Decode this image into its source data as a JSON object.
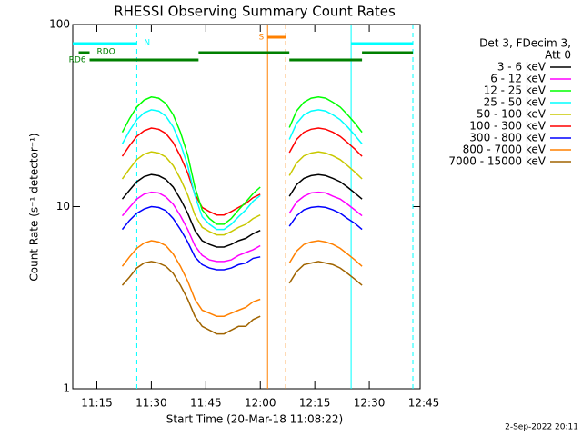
{
  "chart_data": {
    "type": "line",
    "title": "RHESSI Observing Summary Count Rates",
    "x_label": "Start Time (20-Mar-18 11:08:22)",
    "y_label": "Count Rate (s⁻¹ detector⁻¹)",
    "footer": "2-Sep-2022 20:11",
    "log_y": true,
    "xlim": [
      "11:08:22",
      "12:44"
    ],
    "xticks": [
      "11:15",
      "11:30",
      "11:45",
      "12:00",
      "12:15",
      "12:30",
      "12:45"
    ],
    "ylim": [
      1,
      100
    ],
    "yticks": [
      1,
      10,
      100
    ],
    "legend_position": "right",
    "legend_title": [
      "Det 3, FDecim 3,",
      "Att 0"
    ],
    "x": [
      "11:22",
      "11:24",
      "11:26",
      "11:28",
      "11:30",
      "11:32",
      "11:34",
      "11:36",
      "11:38",
      "11:40",
      "11:42",
      "11:44",
      "11:46",
      "11:48",
      "11:50",
      "11:52",
      "11:54",
      "11:56",
      "11:58",
      "12:00",
      "12:04",
      "12:08",
      "12:10",
      "12:12",
      "12:14",
      "12:16",
      "12:18",
      "12:20",
      "12:22",
      "12:24",
      "12:26",
      "12:28"
    ],
    "series": [
      {
        "name": "3 - 6 keV",
        "color": "#000000",
        "values": [
          11.0,
          12.3,
          13.7,
          14.6,
          15,
          14.8,
          14.1,
          12.8,
          11.0,
          9.2,
          7.4,
          6.5,
          6.2,
          6,
          6,
          6.2,
          6.5,
          6.7,
          7.1,
          7.4,
          null,
          11.4,
          13.2,
          14.3,
          14.8,
          15,
          14.8,
          14.3,
          13.7,
          12.8,
          11.9,
          11.0
        ]
      },
      {
        "name": "6 - 12 keV",
        "color": "#ff00ff",
        "values": [
          8.9,
          9.9,
          11.0,
          11.7,
          12,
          11.9,
          11.3,
          10.3,
          8.9,
          7.5,
          6.1,
          5.4,
          5.1,
          5,
          5,
          5.1,
          5.4,
          5.6,
          5.8,
          6.1,
          null,
          9.2,
          10.6,
          11.4,
          11.9,
          12,
          11.9,
          11.4,
          11.0,
          10.3,
          9.6,
          8.9
        ]
      },
      {
        "name": "12 - 25 keV",
        "color": "#00ff00",
        "values": [
          25.6,
          30.4,
          35.2,
          38.4,
          40,
          39.4,
          36.8,
          32,
          25.6,
          19.2,
          12.8,
          9.6,
          8.6,
          8,
          8,
          8.6,
          9.6,
          10.6,
          11.8,
          12.8,
          null,
          27.2,
          33.6,
          37.4,
          39.4,
          40,
          39.4,
          37.4,
          35.2,
          32,
          28.8,
          25.6
        ]
      },
      {
        "name": "25 - 50 keV",
        "color": "#00ffff",
        "values": [
          22.1,
          26.1,
          30.0,
          32.7,
          34,
          33.5,
          31.4,
          27.4,
          22.1,
          16.8,
          11.5,
          8.8,
          8.0,
          7.5,
          7.5,
          8.0,
          8.8,
          9.6,
          10.7,
          11.5,
          null,
          23.4,
          28.7,
          31.9,
          33.5,
          34,
          33.5,
          31.9,
          30.0,
          27.4,
          24.7,
          22.1
        ]
      },
      {
        "name": "50 - 100 keV",
        "color": "#c8c800",
        "values": [
          14.2,
          16.1,
          18.1,
          19.4,
          20,
          19.7,
          18.7,
          16.8,
          14.2,
          11.6,
          9.0,
          7.7,
          7.3,
          7,
          7,
          7.3,
          7.7,
          8.0,
          8.6,
          9.0,
          null,
          14.8,
          17.4,
          19.0,
          19.7,
          20,
          19.7,
          19.0,
          18.1,
          16.8,
          15.5,
          14.2
        ]
      },
      {
        "name": "100 - 300 keV",
        "color": "#ff0000",
        "values": [
          18.9,
          21.6,
          24.3,
          26.1,
          27,
          26.6,
          25.2,
          22.5,
          18.9,
          15.3,
          11.7,
          9.9,
          9.4,
          9,
          9,
          9.4,
          9.9,
          10.4,
          11.2,
          11.7,
          null,
          19.8,
          23.4,
          25.6,
          26.6,
          27,
          26.6,
          25.6,
          24.3,
          22.5,
          20.7,
          18.9
        ]
      },
      {
        "name": "300 - 800 keV",
        "color": "#0000ff",
        "values": [
          7.5,
          8.4,
          9.2,
          9.7,
          10,
          9.9,
          9.5,
          8.6,
          7.5,
          6.4,
          5.3,
          4.8,
          4.6,
          4.5,
          4.5,
          4.6,
          4.8,
          4.9,
          5.2,
          5.3,
          null,
          7.8,
          8.9,
          9.6,
          9.9,
          10,
          9.9,
          9.6,
          9.2,
          8.6,
          8.1,
          7.5
        ]
      },
      {
        "name": "800 - 7000 keV",
        "color": "#ff8000",
        "values": [
          4.7,
          5.3,
          5.9,
          6.3,
          6.5,
          6.4,
          6.1,
          5.5,
          4.7,
          3.9,
          3.1,
          2.7,
          2.6,
          2.5,
          2.5,
          2.6,
          2.7,
          2.8,
          3.0,
          3.1,
          null,
          4.9,
          5.7,
          6.2,
          6.4,
          6.5,
          6.4,
          6.2,
          5.9,
          5.5,
          5.1,
          4.7
        ]
      },
      {
        "name": "7000 - 15000 keV",
        "color": "#a06400",
        "values": [
          3.7,
          4.1,
          4.6,
          4.9,
          5,
          4.9,
          4.7,
          4.3,
          3.7,
          3.1,
          2.5,
          2.2,
          2.1,
          2,
          2,
          2.1,
          2.2,
          2.2,
          2.4,
          2.5,
          null,
          3.8,
          4.4,
          4.8,
          4.9,
          5,
          4.9,
          4.8,
          4.6,
          4.3,
          4.0,
          3.7
        ]
      }
    ],
    "flags": [
      {
        "label": "N",
        "color": "#00ffff",
        "intervals": [
          [
            "11:08:22",
            "11:26"
          ],
          [
            "12:25",
            "12:42"
          ]
        ]
      },
      {
        "label": "S",
        "color": "#ff8000",
        "intervals": [
          [
            "12:02",
            "12:07"
          ]
        ]
      },
      {
        "label": "RDO",
        "color": "#008000",
        "intervals": [
          [
            "11:10",
            "11:13"
          ],
          [
            "11:43",
            "12:08"
          ],
          [
            "12:28",
            "12:42"
          ]
        ]
      },
      {
        "label": "RD6",
        "color": "#008000",
        "intervals": [
          [
            "11:13",
            "11:43"
          ],
          [
            "12:08",
            "12:28"
          ]
        ]
      }
    ],
    "markers": [
      {
        "time": "11:26",
        "color": "#00ffff",
        "style": "dashed"
      },
      {
        "time": "12:25",
        "color": "#00ffff",
        "style": "solid"
      },
      {
        "time": "12:42",
        "color": "#00ffff",
        "style": "dashed"
      },
      {
        "time": "12:02",
        "color": "#ff8000",
        "style": "solid"
      },
      {
        "time": "12:07",
        "color": "#ff8000",
        "style": "dashed"
      }
    ]
  }
}
